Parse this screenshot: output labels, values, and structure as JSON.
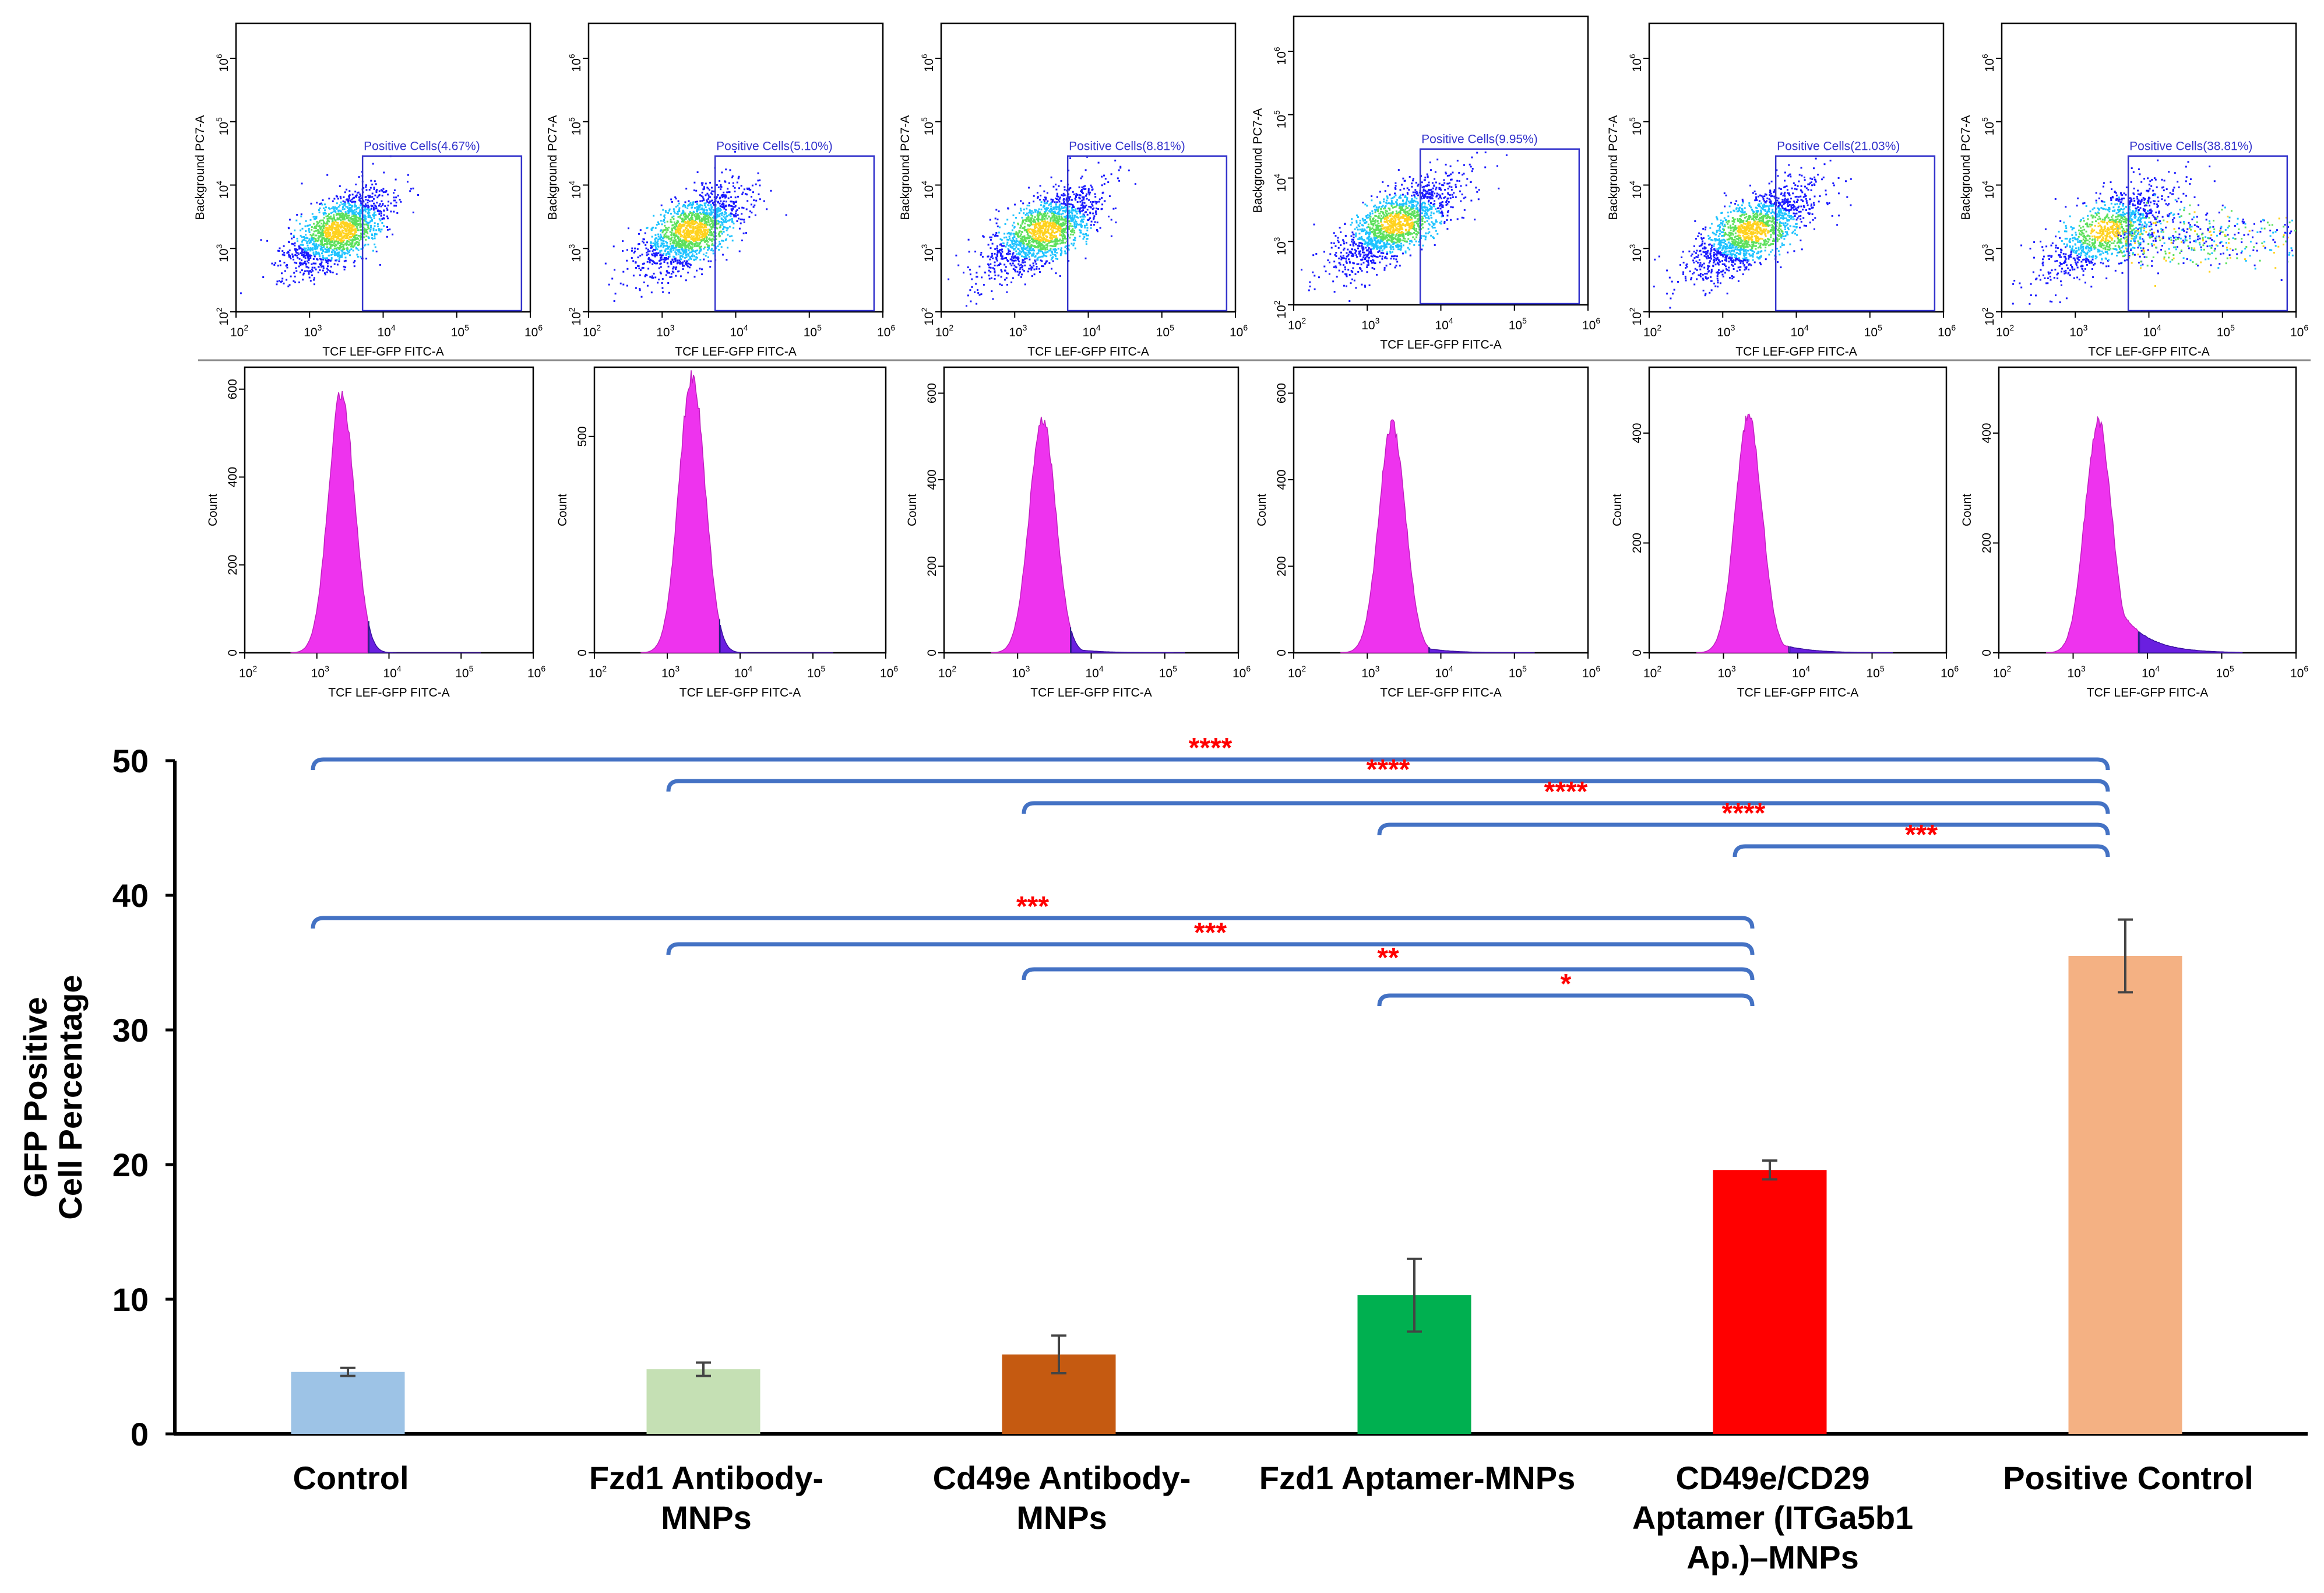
{
  "figure": {
    "scatter_x_label": "TCF LEF-GFP FITC-A",
    "scatter_y_label": "Background PC7-A",
    "hist_x_label": "TCF LEF-GFP FITC-A",
    "hist_y_label": "Count",
    "log_tick_labels": [
      "10",
      "10",
      "10",
      "10",
      "10"
    ],
    "log_tick_exponents": [
      "2",
      "3",
      "4",
      "5",
      "6"
    ],
    "gate_labels": [
      "Positive Cells(4.67%)",
      "Positive Cells(5.10%)",
      "Positive Cells(8.81%)",
      "Positive Cells(9.95%)",
      "Positive Cells(21.03%)",
      "Positive Cells(38.81%)"
    ],
    "hist_y_ticks": [
      [
        "0",
        "200",
        "400",
        "600"
      ],
      [
        "0",
        "500"
      ],
      [
        "0",
        "200",
        "400",
        "600"
      ],
      [
        "0",
        "200",
        "400",
        "600"
      ],
      [
        "0",
        "200",
        "400"
      ],
      [
        "0",
        "200",
        "400"
      ]
    ],
    "colors": {
      "gate": "#3333cc",
      "histogram_main": "#ee33ee",
      "histogram_gated": "#6a1fe0",
      "bracket": "#4472c4",
      "significance": "#ff0000",
      "axis": "#000000"
    }
  },
  "chart_data": {
    "type": "bar",
    "ylabel_line1": "GFP Positive",
    "ylabel_line2": "Cell Percentage",
    "ylim": [
      0,
      50
    ],
    "yticks": [
      "0",
      "10",
      "20",
      "30",
      "40",
      "50"
    ],
    "categories": [
      [
        "Control"
      ],
      [
        "Fzd1 Antibody-",
        "MNPs"
      ],
      [
        "Cd49e Antibody-",
        "MNPs"
      ],
      [
        "Fzd1 Aptamer-MNPs"
      ],
      [
        "CD49e/CD29",
        "Aptamer (ITGa5b1",
        "Ap.)–MNPs"
      ],
      [
        "Positive Control"
      ]
    ],
    "values": [
      4.6,
      4.8,
      5.9,
      10.3,
      19.6,
      35.5
    ],
    "errors": [
      0.3,
      0.5,
      1.4,
      2.7,
      0.7,
      2.7
    ],
    "bar_colors": [
      "#9dc3e6",
      "#c5e0b4",
      "#c55a11",
      "#00b050",
      "#ff0000",
      "#f4b183"
    ],
    "comparisons": [
      {
        "from": 0,
        "to": 5,
        "label": "****"
      },
      {
        "from": 1,
        "to": 5,
        "label": "****"
      },
      {
        "from": 2,
        "to": 5,
        "label": "****"
      },
      {
        "from": 3,
        "to": 5,
        "label": "****"
      },
      {
        "from": 4,
        "to": 5,
        "label": "***"
      },
      {
        "from": 0,
        "to": 4,
        "label": "***"
      },
      {
        "from": 1,
        "to": 4,
        "label": "***"
      },
      {
        "from": 2,
        "to": 4,
        "label": "**"
      },
      {
        "from": 3,
        "to": 4,
        "label": "*"
      }
    ]
  }
}
